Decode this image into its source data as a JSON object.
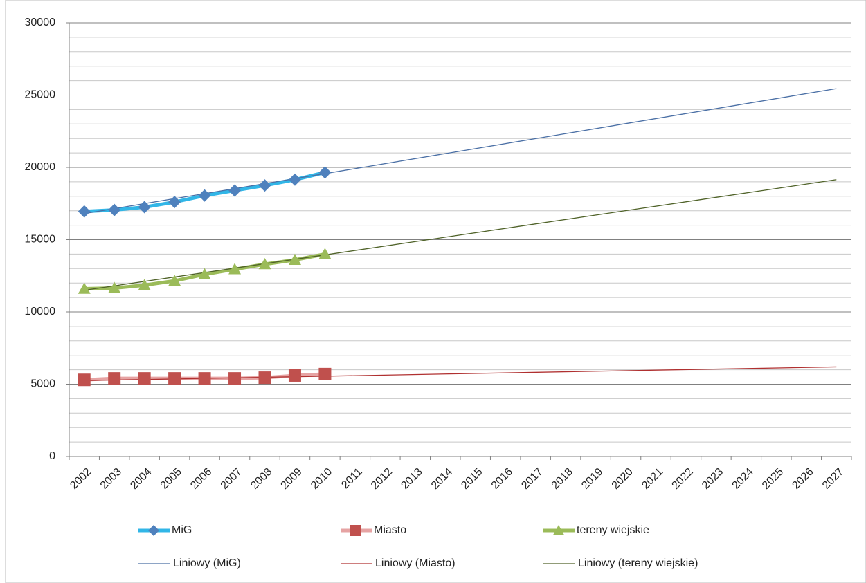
{
  "chart_data": {
    "type": "line",
    "categories": [
      "2002",
      "2003",
      "2004",
      "2005",
      "2006",
      "2007",
      "2008",
      "2009",
      "2010",
      "2011",
      "2012",
      "2013",
      "2014",
      "2015",
      "2016",
      "2017",
      "2018",
      "2019",
      "2020",
      "2021",
      "2022",
      "2023",
      "2024",
      "2025",
      "2026",
      "2027"
    ],
    "ylim": [
      0,
      30000
    ],
    "yticks": [
      0,
      5000,
      10000,
      15000,
      20000,
      25000,
      30000
    ],
    "yminorticks": [
      1000,
      2000,
      3000,
      4000,
      6000,
      7000,
      8000,
      9000,
      11000,
      12000,
      13000,
      14000,
      16000,
      17000,
      18000,
      19000,
      21000,
      22000,
      23000,
      24000,
      26000,
      27000,
      28000,
      29000
    ],
    "grid": true,
    "legend": "bottom",
    "series": [
      {
        "name": "MiG",
        "color": "#31b6e7",
        "marker_color": "#4f81bd",
        "marker": "diamond",
        "values": [
          16950,
          17050,
          17250,
          17600,
          18050,
          18400,
          18750,
          19150,
          19650,
          null,
          null,
          null,
          null,
          null,
          null,
          null,
          null,
          null,
          null,
          null,
          null,
          null,
          null,
          null,
          null,
          null
        ]
      },
      {
        "name": "Miasto",
        "color": "#e6a3a3",
        "marker_color": "#c0504d",
        "marker": "square",
        "values": [
          5300,
          5400,
          5400,
          5400,
          5400,
          5400,
          5450,
          5600,
          5700,
          null,
          null,
          null,
          null,
          null,
          null,
          null,
          null,
          null,
          null,
          null,
          null,
          null,
          null,
          null,
          null,
          null
        ]
      },
      {
        "name": "tereny wiejskie",
        "color": "#9bbb59",
        "marker_color": "#9bbb59",
        "marker": "triangle",
        "values": [
          11600,
          11650,
          11850,
          12150,
          12600,
          12950,
          13300,
          13600,
          14000,
          null,
          null,
          null,
          null,
          null,
          null,
          null,
          null,
          null,
          null,
          null,
          null,
          null,
          null,
          null,
          null,
          null
        ]
      }
    ],
    "trendlines": [
      {
        "name": "Liniowy (MiG)",
        "color": "#4a6fa5",
        "x": [
          "2002",
          "2027"
        ],
        "values": [
          16800,
          25450
        ]
      },
      {
        "name": "Liniowy (Miasto)",
        "color": "#b03030",
        "x": [
          "2002",
          "2027"
        ],
        "values": [
          5250,
          6200
        ]
      },
      {
        "name": "Liniowy (tereny wiejskie)",
        "color": "#4f6228",
        "x": [
          "2002",
          "2027"
        ],
        "values": [
          11500,
          19150
        ]
      }
    ]
  }
}
